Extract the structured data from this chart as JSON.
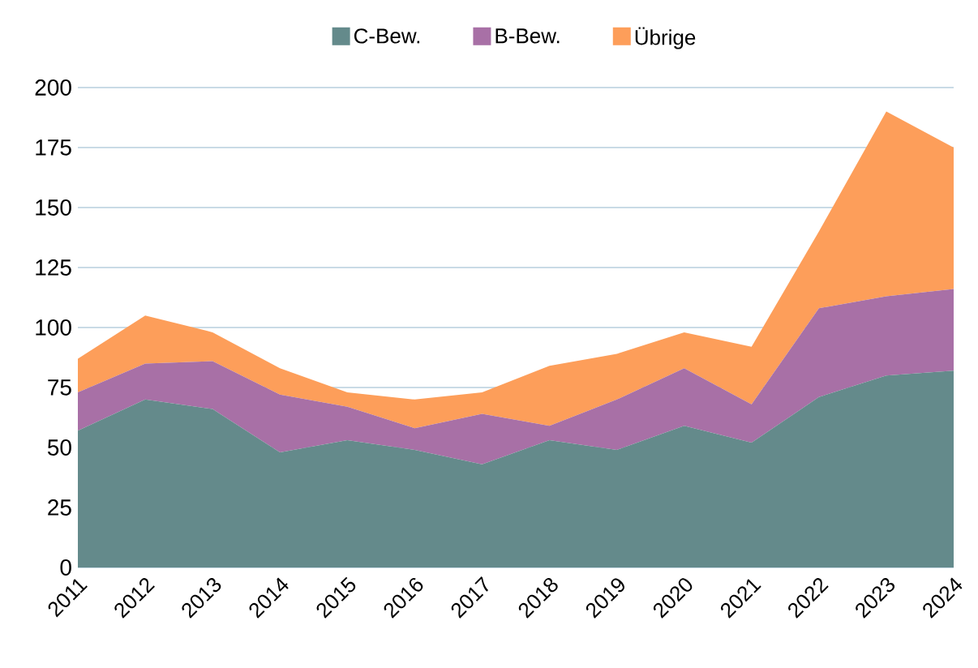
{
  "chart_data": {
    "type": "area",
    "stacked": true,
    "categories": [
      "2011",
      "2012",
      "2013",
      "2014",
      "2015",
      "2016",
      "2017",
      "2018",
      "2019",
      "2020",
      "2021",
      "2022",
      "2023",
      "2024"
    ],
    "series": [
      {
        "name": "C-Bew.",
        "color": "#648a8b",
        "values": [
          57,
          70,
          66,
          48,
          53,
          49,
          43,
          53,
          49,
          59,
          52,
          71,
          80,
          82
        ]
      },
      {
        "name": "B-Bew.",
        "color": "#a870a6",
        "values": [
          16,
          15,
          20,
          24,
          14,
          9,
          21,
          6,
          21,
          24,
          16,
          37,
          33,
          34
        ]
      },
      {
        "name": "Übrige",
        "color": "#fd9e5a",
        "values": [
          14,
          20,
          12,
          11,
          6,
          12,
          9,
          25,
          19,
          15,
          24,
          32,
          77,
          59
        ]
      }
    ],
    "ylim": [
      0,
      200
    ],
    "yticks": [
      0,
      25,
      50,
      75,
      100,
      125,
      150,
      175,
      200
    ],
    "grid": "y",
    "legend": "top"
  }
}
